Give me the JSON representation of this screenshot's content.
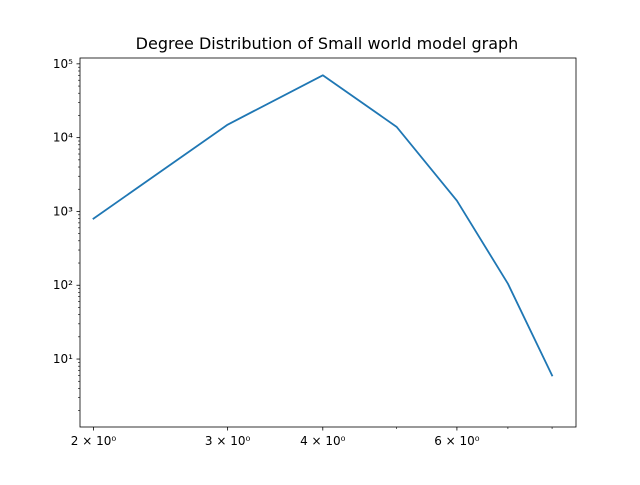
{
  "chart_data": {
    "type": "line",
    "title": "Degree Distribution of Small world model graph",
    "xlabel": "",
    "ylabel": "",
    "xscale": "log",
    "yscale": "log",
    "xlim": [
      1.92,
      8.6
    ],
    "ylim": [
      1.2,
      120000
    ],
    "grid": false,
    "x_major_ticks": [
      {
        "value": 2,
        "label": "2 × 10⁰"
      },
      {
        "value": 3,
        "label": "3 × 10⁰"
      },
      {
        "value": 4,
        "label": "4 × 10⁰"
      },
      {
        "value": 6,
        "label": "6 × 10⁰"
      }
    ],
    "x_minor_ticks": [
      5,
      7,
      8
    ],
    "y_major_ticks": [
      {
        "value": 10,
        "label": "10¹"
      },
      {
        "value": 100,
        "label": "10²"
      },
      {
        "value": 1000,
        "label": "10³"
      },
      {
        "value": 10000,
        "label": "10⁴"
      },
      {
        "value": 100000,
        "label": "10⁵"
      }
    ],
    "series": [
      {
        "color": "#1f77b4",
        "x": [
          2,
          3,
          4,
          5,
          6,
          7,
          8
        ],
        "y": [
          800,
          15000,
          70000,
          14000,
          1400,
          105,
          6
        ]
      }
    ]
  }
}
